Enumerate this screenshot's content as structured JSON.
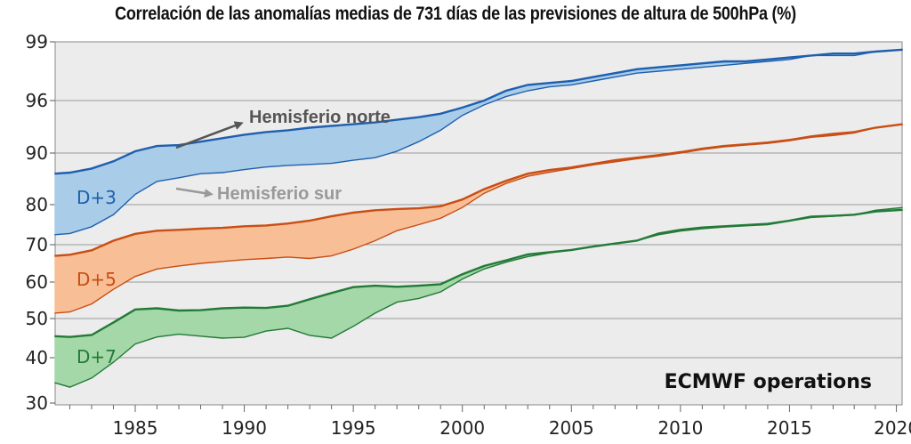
{
  "chart_data": {
    "type": "area",
    "title": "Correlación de las anomalías medias de 731 días de las previsiones de altura de 500hPa (%)",
    "x_ticks": [
      1985,
      1990,
      1995,
      2000,
      2005,
      2010,
      2015,
      2020
    ],
    "y_ticks": [
      30,
      40,
      50,
      60,
      70,
      80,
      90,
      96,
      99
    ],
    "xlim": [
      1981,
      2020.5
    ],
    "ylim": [
      30,
      99
    ],
    "y_scale": "stretched toward 100",
    "grid": true,
    "series": [
      {
        "name": "D+3",
        "color": "#1f5fae",
        "fill": "#a9cde8",
        "north_hemisphere": [
          [
            1981.3,
            86
          ],
          [
            1982,
            86.2
          ],
          [
            1983,
            87
          ],
          [
            1984,
            88.4
          ],
          [
            1985,
            90.2
          ],
          [
            1986,
            90.8
          ],
          [
            1987,
            90.9
          ],
          [
            1988,
            91.3
          ],
          [
            1989,
            91.7
          ],
          [
            1990,
            92.1
          ],
          [
            1991,
            92.4
          ],
          [
            1992,
            92.6
          ],
          [
            1993,
            92.9
          ],
          [
            1994,
            93.1
          ],
          [
            1995,
            93.3
          ],
          [
            1996,
            93.5
          ],
          [
            1997,
            93.8
          ],
          [
            1998,
            94.1
          ],
          [
            1999,
            94.5
          ],
          [
            2000,
            95.2
          ],
          [
            2001,
            96
          ],
          [
            2002,
            96.5
          ],
          [
            2003,
            96.8
          ],
          [
            2004,
            96.9
          ],
          [
            2005,
            97
          ],
          [
            2006,
            97.2
          ],
          [
            2007,
            97.4
          ],
          [
            2008,
            97.6
          ],
          [
            2009,
            97.7
          ],
          [
            2010,
            97.8
          ],
          [
            2011,
            97.9
          ],
          [
            2012,
            98
          ],
          [
            2013,
            98
          ],
          [
            2014,
            98.1
          ],
          [
            2015,
            98.2
          ],
          [
            2016,
            98.3
          ],
          [
            2017,
            98.4
          ],
          [
            2018,
            98.4
          ],
          [
            2019,
            98.5
          ],
          [
            2020.3,
            98.6
          ]
        ],
        "south_hemisphere": [
          [
            1981.3,
            72.5
          ],
          [
            1982,
            72.8
          ],
          [
            1983,
            74.5
          ],
          [
            1984,
            77.5
          ],
          [
            1985,
            82
          ],
          [
            1986,
            84.5
          ],
          [
            1987,
            85.2
          ],
          [
            1988,
            86
          ],
          [
            1989,
            86.2
          ],
          [
            1990,
            86.8
          ],
          [
            1991,
            87.3
          ],
          [
            1992,
            87.6
          ],
          [
            1993,
            87.8
          ],
          [
            1994,
            88
          ],
          [
            1995,
            88.6
          ],
          [
            1996,
            89.1
          ],
          [
            1997,
            90.2
          ],
          [
            1998,
            91.3
          ],
          [
            1999,
            92.6
          ],
          [
            2000,
            94.3
          ],
          [
            2001,
            95.5
          ],
          [
            2002,
            96.2
          ],
          [
            2003,
            96.5
          ],
          [
            2004,
            96.7
          ],
          [
            2005,
            96.8
          ],
          [
            2006,
            97
          ],
          [
            2007,
            97.2
          ],
          [
            2008,
            97.4
          ],
          [
            2009,
            97.5
          ],
          [
            2010,
            97.6
          ],
          [
            2011,
            97.7
          ],
          [
            2012,
            97.8
          ],
          [
            2013,
            97.9
          ],
          [
            2014,
            98
          ],
          [
            2015,
            98.1
          ],
          [
            2016,
            98.3
          ],
          [
            2017,
            98.3
          ],
          [
            2018,
            98.3
          ],
          [
            2019,
            98.5
          ],
          [
            2020.3,
            98.6
          ]
        ]
      },
      {
        "name": "D+5",
        "color": "#c84e14",
        "fill": "#f8be95",
        "north_hemisphere": [
          [
            1981.3,
            67
          ],
          [
            1982,
            67.3
          ],
          [
            1983,
            68.5
          ],
          [
            1984,
            71
          ],
          [
            1985,
            72.7
          ],
          [
            1986,
            73.5
          ],
          [
            1987,
            73.7
          ],
          [
            1988,
            74
          ],
          [
            1989,
            74.2
          ],
          [
            1990,
            74.6
          ],
          [
            1991,
            74.8
          ],
          [
            1992,
            75.3
          ],
          [
            1993,
            76
          ],
          [
            1994,
            77.1
          ],
          [
            1995,
            78
          ],
          [
            1996,
            78.6
          ],
          [
            1997,
            78.9
          ],
          [
            1998,
            79.1
          ],
          [
            1999,
            79.6
          ],
          [
            2000,
            81
          ],
          [
            2001,
            83
          ],
          [
            2002,
            84.6
          ],
          [
            2003,
            86
          ],
          [
            2004,
            86.7
          ],
          [
            2005,
            87.2
          ],
          [
            2006,
            87.9
          ],
          [
            2007,
            88.6
          ],
          [
            2008,
            89.1
          ],
          [
            2009,
            89.6
          ],
          [
            2010,
            90.1
          ],
          [
            2011,
            90.5
          ],
          [
            2012,
            90.8
          ],
          [
            2013,
            91
          ],
          [
            2014,
            91.2
          ],
          [
            2015,
            91.5
          ],
          [
            2016,
            91.9
          ],
          [
            2017,
            92.2
          ],
          [
            2018,
            92.4
          ],
          [
            2019,
            92.9
          ],
          [
            2020.3,
            93.3
          ]
        ],
        "south_hemisphere": [
          [
            1981.3,
            51.5
          ],
          [
            1982,
            51.8
          ],
          [
            1983,
            54
          ],
          [
            1984,
            58
          ],
          [
            1985,
            61.5
          ],
          [
            1986,
            63.5
          ],
          [
            1987,
            64.3
          ],
          [
            1988,
            65
          ],
          [
            1989,
            65.5
          ],
          [
            1990,
            66
          ],
          [
            1991,
            66.3
          ],
          [
            1992,
            66.7
          ],
          [
            1993,
            66.3
          ],
          [
            1994,
            67
          ],
          [
            1995,
            68.8
          ],
          [
            1996,
            71
          ],
          [
            1997,
            73.5
          ],
          [
            1998,
            75
          ],
          [
            1999,
            76.6
          ],
          [
            2000,
            79.3
          ],
          [
            2001,
            82.2
          ],
          [
            2002,
            84.1
          ],
          [
            2003,
            85.5
          ],
          [
            2004,
            86.3
          ],
          [
            2005,
            87
          ],
          [
            2006,
            87.7
          ],
          [
            2007,
            88.3
          ],
          [
            2008,
            88.9
          ],
          [
            2009,
            89.4
          ],
          [
            2010,
            90
          ],
          [
            2011,
            90.4
          ],
          [
            2012,
            90.7
          ],
          [
            2013,
            90.9
          ],
          [
            2014,
            91.1
          ],
          [
            2015,
            91.4
          ],
          [
            2016,
            91.8
          ],
          [
            2017,
            92
          ],
          [
            2018,
            92.3
          ],
          [
            2019,
            92.9
          ],
          [
            2020.3,
            93.3
          ]
        ]
      },
      {
        "name": "D+7",
        "color": "#237a37",
        "fill": "#a5d8a8",
        "north_hemisphere": [
          [
            1981.3,
            45.5
          ],
          [
            1982,
            45.3
          ],
          [
            1983,
            45.8
          ],
          [
            1984,
            49
          ],
          [
            1985,
            52.5
          ],
          [
            1986,
            52.8
          ],
          [
            1987,
            52.2
          ],
          [
            1988,
            52.3
          ],
          [
            1989,
            52.8
          ],
          [
            1990,
            53
          ],
          [
            1991,
            52.9
          ],
          [
            1992,
            53.5
          ],
          [
            1993,
            55.3
          ],
          [
            1994,
            57
          ],
          [
            1995,
            58.6
          ],
          [
            1996,
            59
          ],
          [
            1997,
            58.7
          ],
          [
            1998,
            59
          ],
          [
            1999,
            59.4
          ],
          [
            2000,
            62.1
          ],
          [
            2001,
            64.3
          ],
          [
            2002,
            65.8
          ],
          [
            2003,
            67.4
          ],
          [
            2004,
            68
          ],
          [
            2005,
            68.6
          ],
          [
            2006,
            69.5
          ],
          [
            2007,
            70.3
          ],
          [
            2008,
            71
          ],
          [
            2009,
            72.8
          ],
          [
            2010,
            73.7
          ],
          [
            2011,
            74.3
          ],
          [
            2012,
            74.6
          ],
          [
            2013,
            74.9
          ],
          [
            2014,
            75.2
          ],
          [
            2015,
            76
          ],
          [
            2016,
            77
          ],
          [
            2017,
            77.2
          ],
          [
            2018,
            77.5
          ],
          [
            2019,
            78.3
          ],
          [
            2020.3,
            78.7
          ]
        ],
        "south_hemisphere": [
          [
            1981.3,
            34.5
          ],
          [
            1982,
            33.5
          ],
          [
            1983,
            35.5
          ],
          [
            1984,
            39
          ],
          [
            1985,
            43.5
          ],
          [
            1986,
            45.3
          ],
          [
            1987,
            46
          ],
          [
            1988,
            45.5
          ],
          [
            1989,
            45
          ],
          [
            1990,
            45.2
          ],
          [
            1991,
            46.8
          ],
          [
            1992,
            47.5
          ],
          [
            1993,
            45.7
          ],
          [
            1994,
            45
          ],
          [
            1995,
            48
          ],
          [
            1996,
            51.5
          ],
          [
            1997,
            54.5
          ],
          [
            1998,
            55.5
          ],
          [
            1999,
            57.3
          ],
          [
            2000,
            60.8
          ],
          [
            2001,
            63.5
          ],
          [
            2002,
            65.3
          ],
          [
            2003,
            66.8
          ],
          [
            2004,
            67.8
          ],
          [
            2005,
            68.5
          ],
          [
            2006,
            69.5
          ],
          [
            2007,
            70.2
          ],
          [
            2008,
            71
          ],
          [
            2009,
            72.5
          ],
          [
            2010,
            73.4
          ],
          [
            2011,
            74
          ],
          [
            2012,
            74.4
          ],
          [
            2013,
            74.7
          ],
          [
            2014,
            75
          ],
          [
            2015,
            75.9
          ],
          [
            2016,
            76.8
          ],
          [
            2017,
            77.1
          ],
          [
            2018,
            77.4
          ],
          [
            2019,
            78.6
          ],
          [
            2020.3,
            79.3
          ]
        ]
      }
    ],
    "annotations": {
      "north": "Hemisferio norte",
      "south": "Hemisferio sur",
      "source": "ECMWF operations"
    }
  }
}
